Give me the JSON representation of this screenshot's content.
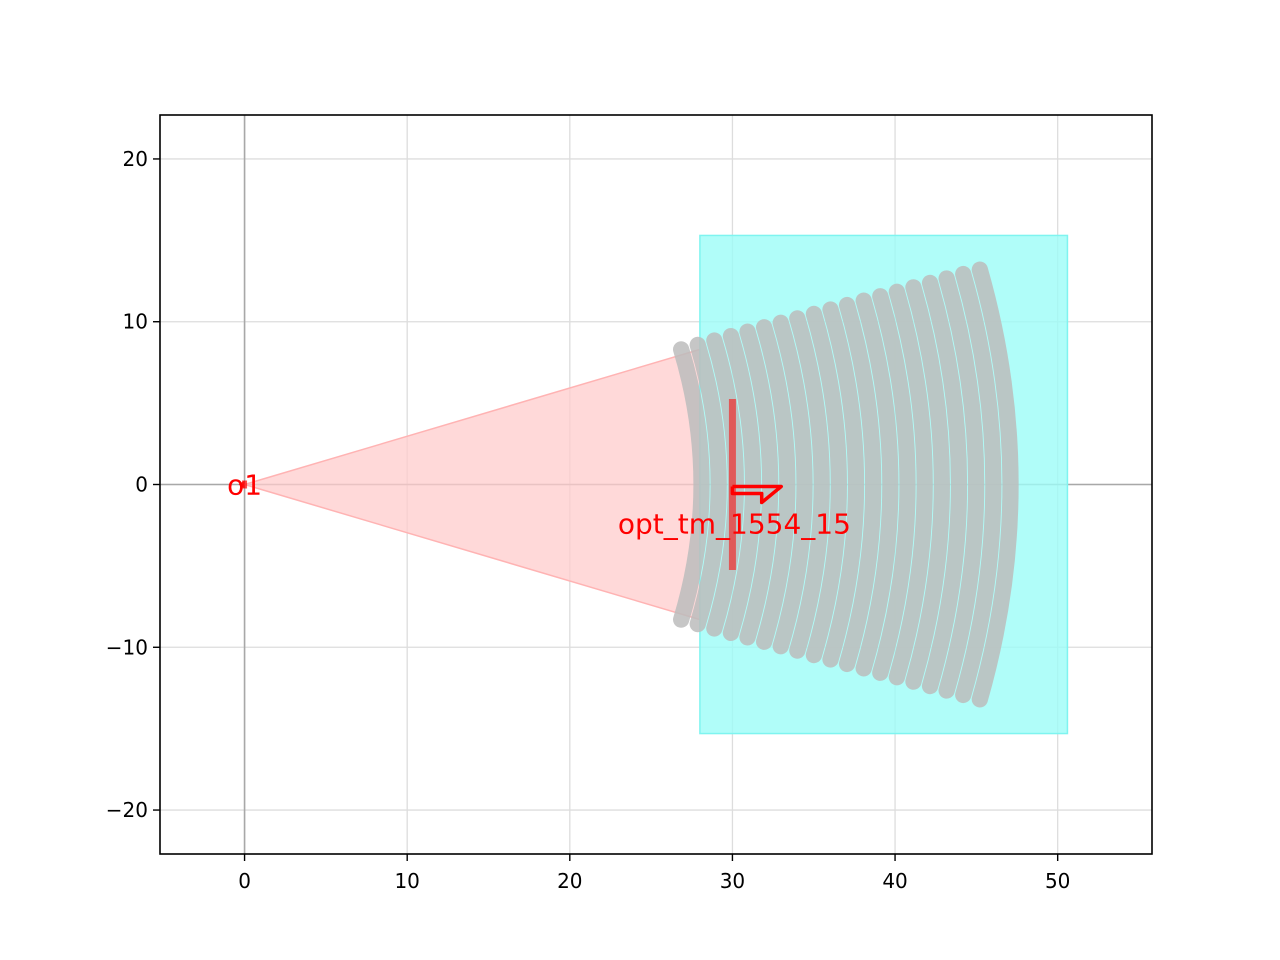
{
  "chart_data": {
    "type": "layout",
    "title": "",
    "xlabel": "",
    "ylabel": "",
    "xlim": [
      -5.2,
      55.8
    ],
    "ylim": [
      -22.7,
      22.7
    ],
    "grid": true,
    "x_ticks": [
      {
        "value": 0,
        "label": "0"
      },
      {
        "value": 10,
        "label": "10"
      },
      {
        "value": 20,
        "label": "20"
      },
      {
        "value": 30,
        "label": "30"
      },
      {
        "value": 40,
        "label": "40"
      },
      {
        "value": 50,
        "label": "50"
      }
    ],
    "y_ticks": [
      {
        "value": 20,
        "label": "20"
      },
      {
        "value": 10,
        "label": "10"
      },
      {
        "value": 0,
        "label": "0"
      },
      {
        "value": -10,
        "label": "−10"
      },
      {
        "value": -20,
        "label": "−20"
      }
    ],
    "shapes": {
      "taper": {
        "apex": [
          0,
          0
        ],
        "end_x": 28,
        "half_width": 8.3,
        "color": "#ffcccc"
      },
      "cladding_box": {
        "x": [
          28,
          50.6
        ],
        "y": [
          -15.3,
          15.3
        ],
        "color": "#9cfcf8"
      },
      "grating_teeth": {
        "count": 19,
        "first_radius": 28.1,
        "last_radius": 47.1,
        "tooth_width": 0.5,
        "inner_half_width": 8.3,
        "outer_half_width": 13.2,
        "color": "#bcbcbc"
      }
    },
    "ports": [
      {
        "name": "o1",
        "x": 0,
        "y": 0,
        "width": 0.5,
        "orientation": 180,
        "color": "#ff0000"
      },
      {
        "name": "opt_tm_1554_15",
        "x": 30,
        "y": 0,
        "width": 10.5,
        "orientation": 0,
        "color": "#ff0000"
      }
    ]
  }
}
